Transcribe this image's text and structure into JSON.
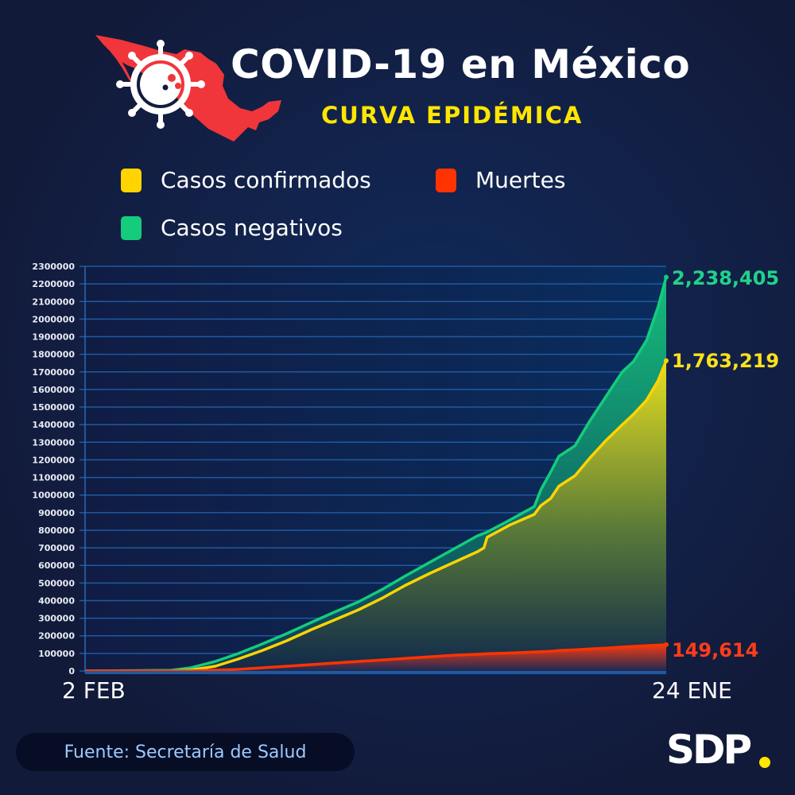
{
  "header": {
    "title": "COVID-19 en México",
    "subtitle": "CURVA EPIDÉMICA",
    "logo_icon": "mexico-map-virus-icon"
  },
  "legend": [
    {
      "label": "Casos confirmados",
      "color": "#ffd400"
    },
    {
      "label": "Muertes",
      "color": "#ff3300"
    },
    {
      "label": "Casos negativos",
      "color": "#14cc7c"
    }
  ],
  "chart_data": {
    "type": "area",
    "title": "CURVA EPIDÉMICA",
    "xlabel": "",
    "ylabel": "",
    "x_start_label": "2 FEB",
    "x_end_label": "24 ENE",
    "x_range_days": [
      0,
      357
    ],
    "ylim": [
      0,
      2300000
    ],
    "yticks": [
      0,
      100000,
      200000,
      300000,
      400000,
      500000,
      600000,
      700000,
      800000,
      900000,
      1000000,
      1100000,
      1200000,
      1300000,
      1400000,
      1500000,
      1600000,
      1700000,
      1800000,
      1900000,
      2000000,
      2100000,
      2200000,
      2300000
    ],
    "ytick_labels": [
      "0",
      "100000",
      "200000",
      "300000",
      "400000",
      "500000",
      "600000",
      "700000",
      "800000",
      "900000",
      "1000000",
      "1100000",
      "1200000",
      "1300000",
      "1400000",
      "1500000",
      "1600000",
      "1700000",
      "1800000",
      "1900000",
      "2000000",
      "2100000",
      "2200000",
      "2300000"
    ],
    "grid": true,
    "legend_position": "top",
    "x_days": [
      0,
      53,
      65,
      80,
      94,
      109,
      124,
      139,
      153,
      168,
      183,
      197,
      212,
      227,
      241,
      245,
      247,
      261,
      276,
      280,
      286,
      291,
      301,
      310,
      320,
      330,
      337,
      345,
      352,
      357
    ],
    "series": [
      {
        "name": "Casos negativos",
        "color": "#14cc7c",
        "end_label": "2,238,405",
        "values": [
          0,
          4000,
          18000,
          54000,
          99000,
          154000,
          213000,
          276000,
          334000,
          393000,
          466000,
          542000,
          619000,
          696000,
          768000,
          782000,
          790000,
          858000,
          935000,
          1030000,
          1130000,
          1220000,
          1280000,
          1420000,
          1560000,
          1700000,
          1760000,
          1880000,
          2070000,
          2238405
        ]
      },
      {
        "name": "Casos confirmados",
        "color": "#ffd400",
        "end_label": "1,763,219",
        "values": [
          0,
          0,
          5000,
          27000,
          68000,
          117000,
          172000,
          235000,
          289000,
          348000,
          416000,
          488000,
          556000,
          619000,
          678000,
          700000,
          760000,
          830000,
          890000,
          940000,
          980000,
          1050000,
          1110000,
          1210000,
          1310000,
          1400000,
          1460000,
          1540000,
          1650000,
          1763219
        ]
      },
      {
        "name": "Muertes",
        "color": "#ff3300",
        "end_label": "149,614",
        "values": [
          0,
          0,
          0,
          5000,
          9000,
          18000,
          27000,
          36000,
          45000,
          54000,
          63000,
          72000,
          81000,
          90000,
          95000,
          97000,
          98000,
          102000,
          108000,
          110000,
          112000,
          116000,
          120000,
          125000,
          130000,
          136000,
          140000,
          144000,
          147000,
          149614
        ]
      }
    ]
  },
  "footer": {
    "source": "Fuente: Secretaría de Salud",
    "brand": "SDP",
    "brand_dot_color": "#ffe600"
  }
}
